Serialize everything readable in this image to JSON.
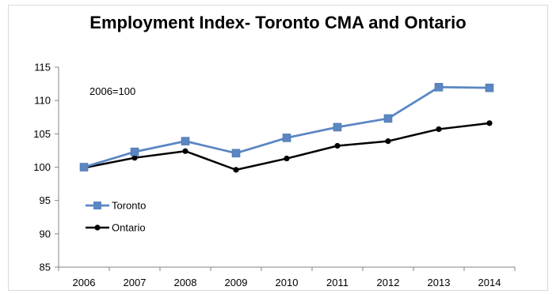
{
  "chart_data": {
    "type": "line",
    "title": "Employment Index- Toronto CMA and Ontario",
    "annotation": "2006=100",
    "xlabel": "",
    "ylabel": "",
    "categories": [
      "2006",
      "2007",
      "2008",
      "2009",
      "2010",
      "2011",
      "2012",
      "2013",
      "2014"
    ],
    "ylim": [
      85,
      115
    ],
    "yticks": [
      85,
      90,
      95,
      100,
      105,
      110,
      115
    ],
    "grid": false,
    "legend_position": "left",
    "series": [
      {
        "name": "Toronto",
        "color": "#5b86c2",
        "marker": "square",
        "values": [
          100,
          102.3,
          103.9,
          102.1,
          104.4,
          106.0,
          107.3,
          112.0,
          111.9
        ]
      },
      {
        "name": "Ontario",
        "color": "#000000",
        "marker": "circle",
        "values": [
          99.9,
          101.4,
          102.4,
          99.6,
          101.3,
          103.2,
          103.9,
          105.7,
          106.6
        ]
      }
    ]
  }
}
